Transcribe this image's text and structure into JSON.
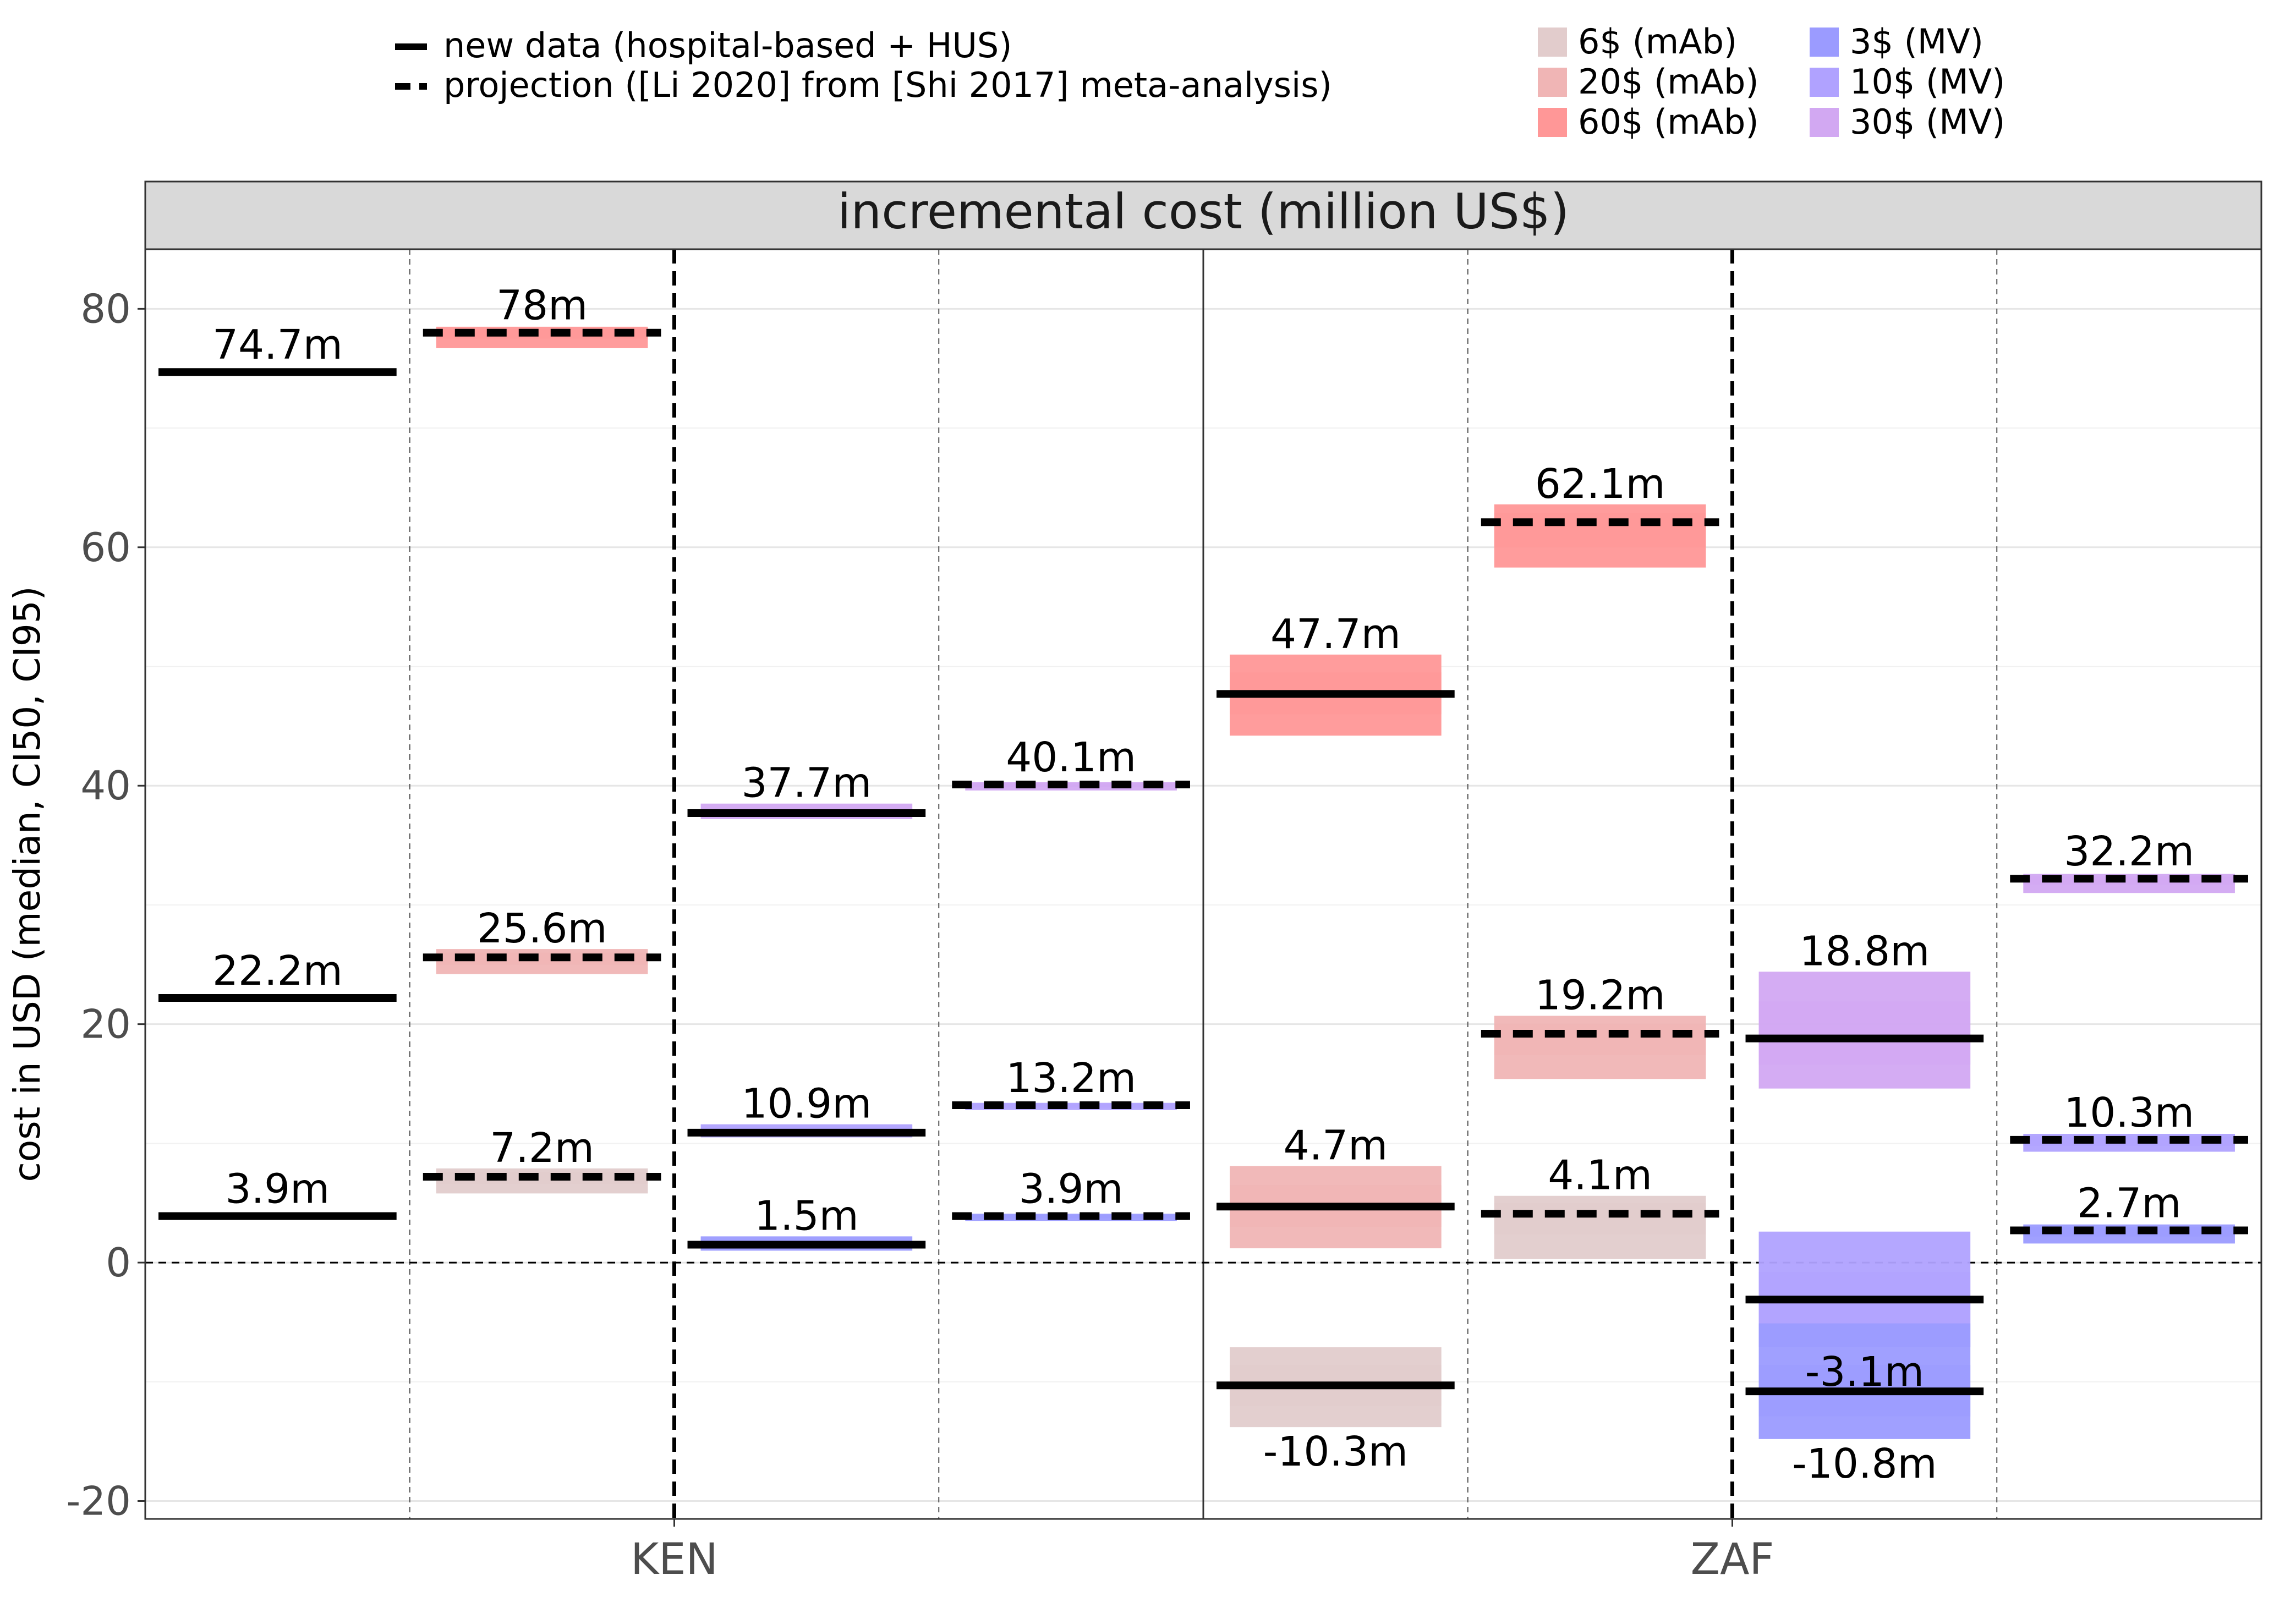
{
  "legend": {
    "linetypes": [
      {
        "key": "solid",
        "label": "new data (hospital-based + HUS)"
      },
      {
        "key": "dashed",
        "label": "projection ([Li 2020] from [Shi 2017] meta-analysis)"
      }
    ],
    "fills": [
      {
        "key": "mab6",
        "label": "6$ (mAb)",
        "color": "#e2cccc"
      },
      {
        "key": "mab20",
        "label": "20$ (mAb)",
        "color": "#f0b5b5"
      },
      {
        "key": "mab60",
        "label": "60$ (mAb)",
        "color": "#ff9797"
      },
      {
        "key": "mv3",
        "label": "3$ (MV)",
        "color": "#9b9bff"
      },
      {
        "key": "mv10",
        "label": "10$ (MV)",
        "color": "#b0a2ff"
      },
      {
        "key": "mv30",
        "label": "30$ (MV)",
        "color": "#d2a8f2"
      }
    ]
  },
  "chart_data": {
    "type": "crossbar",
    "facet_title": "incremental cost (million US$)",
    "ylabel": "cost in USD (median, CI50, CI95)",
    "xlabel": "",
    "ylim": [
      -21.5,
      85
    ],
    "yticks": [
      -20,
      0,
      20,
      40,
      60,
      80
    ],
    "categories": [
      "KEN",
      "ZAF"
    ],
    "columns": [
      {
        "country": "KEN",
        "intervention": "mAb",
        "linetype": "solid"
      },
      {
        "country": "KEN",
        "intervention": "mAb",
        "linetype": "dashed"
      },
      {
        "country": "KEN",
        "intervention": "MV",
        "linetype": "solid"
      },
      {
        "country": "KEN",
        "intervention": "MV",
        "linetype": "dashed"
      },
      {
        "country": "ZAF",
        "intervention": "mAb",
        "linetype": "solid"
      },
      {
        "country": "ZAF",
        "intervention": "mAb",
        "linetype": "dashed"
      },
      {
        "country": "ZAF",
        "intervention": "MV",
        "linetype": "solid"
      },
      {
        "country": "ZAF",
        "intervention": "MV",
        "linetype": "dashed"
      }
    ],
    "series": [
      {
        "column": 0,
        "price": "mab60",
        "median": 74.7,
        "ci50": [
          74.5,
          74.9
        ],
        "ci95": [
          74.4,
          75.0
        ],
        "label": "74.7m",
        "label_pos": "above"
      },
      {
        "column": 0,
        "price": "mab20",
        "median": 22.2,
        "ci50": [
          22.0,
          22.4
        ],
        "ci95": [
          21.9,
          22.5
        ],
        "label": "22.2m",
        "label_pos": "above"
      },
      {
        "column": 0,
        "price": "mab6",
        "median": 3.9,
        "ci50": [
          3.7,
          4.1
        ],
        "ci95": [
          3.6,
          4.2
        ],
        "label": "3.9m",
        "label_pos": "above"
      },
      {
        "column": 1,
        "price": "mab60",
        "median": 78,
        "ci50": [
          77.5,
          78.3
        ],
        "ci95": [
          76.7,
          78.5
        ],
        "label": "78m",
        "label_pos": "above"
      },
      {
        "column": 1,
        "price": "mab20",
        "median": 25.6,
        "ci50": [
          25.0,
          26.0
        ],
        "ci95": [
          24.2,
          26.3
        ],
        "label": "25.6m",
        "label_pos": "above"
      },
      {
        "column": 1,
        "price": "mab6",
        "median": 7.2,
        "ci50": [
          6.6,
          7.6
        ],
        "ci95": [
          5.8,
          7.9
        ],
        "label": "7.2m",
        "label_pos": "above"
      },
      {
        "column": 2,
        "price": "mv30",
        "median": 37.7,
        "ci50": [
          37.5,
          38.1
        ],
        "ci95": [
          37.2,
          38.5
        ],
        "label": "37.7m",
        "label_pos": "above"
      },
      {
        "column": 2,
        "price": "mv10",
        "median": 10.9,
        "ci50": [
          10.7,
          11.3
        ],
        "ci95": [
          10.5,
          11.6
        ],
        "label": "10.9m",
        "label_pos": "above"
      },
      {
        "column": 2,
        "price": "mv3",
        "median": 1.5,
        "ci50": [
          1.3,
          1.8
        ],
        "ci95": [
          1.0,
          2.2
        ],
        "label": "1.5m",
        "label_pos": "above"
      },
      {
        "column": 3,
        "price": "mv30",
        "median": 40.1,
        "ci50": [
          39.9,
          40.2
        ],
        "ci95": [
          39.6,
          40.3
        ],
        "label": "40.1m",
        "label_pos": "above"
      },
      {
        "column": 3,
        "price": "mv10",
        "median": 13.2,
        "ci50": [
          13.0,
          13.3
        ],
        "ci95": [
          12.8,
          13.4
        ],
        "label": "13.2m",
        "label_pos": "above"
      },
      {
        "column": 3,
        "price": "mv3",
        "median": 3.9,
        "ci50": [
          3.7,
          4.0
        ],
        "ci95": [
          3.5,
          4.1
        ],
        "label": "3.9m",
        "label_pos": "above"
      },
      {
        "column": 4,
        "price": "mab60",
        "median": 47.7,
        "ci50": [
          46.0,
          49.5
        ],
        "ci95": [
          44.2,
          51.0
        ],
        "label": "47.7m",
        "label_pos": "above"
      },
      {
        "column": 4,
        "price": "mab20",
        "median": 4.7,
        "ci50": [
          3.0,
          6.5
        ],
        "ci95": [
          1.2,
          8.1
        ],
        "label": "4.7m",
        "label_pos": "above"
      },
      {
        "column": 4,
        "price": "mab6",
        "median": -10.3,
        "ci50": [
          -12.0,
          -8.6
        ],
        "ci95": [
          -13.8,
          -7.1
        ],
        "label": "-10.3m",
        "label_pos": "below"
      },
      {
        "column": 5,
        "price": "mab60",
        "median": 62.1,
        "ci50": [
          60.0,
          62.9
        ],
        "ci95": [
          58.3,
          63.6
        ],
        "label": "62.1m",
        "label_pos": "above"
      },
      {
        "column": 5,
        "price": "mab20",
        "median": 19.2,
        "ci50": [
          17.4,
          20.0
        ],
        "ci95": [
          15.4,
          20.7
        ],
        "label": "19.2m",
        "label_pos": "above"
      },
      {
        "column": 5,
        "price": "mab6",
        "median": 4.1,
        "ci50": [
          2.4,
          5.0
        ],
        "ci95": [
          0.3,
          5.6
        ],
        "label": "4.1m",
        "label_pos": "above"
      },
      {
        "column": 6,
        "price": "mv30",
        "median": 18.8,
        "ci50": [
          16.6,
          21.9
        ],
        "ci95": [
          14.6,
          24.4
        ],
        "label": "18.8m",
        "label_pos": "above"
      },
      {
        "column": 6,
        "price": "mv10",
        "median": -3.1,
        "ci50": [
          -5.1,
          -0.8
        ],
        "ci95": [
          -7.1,
          2.6
        ],
        "label": "-3.1m",
        "label_pos": "below"
      },
      {
        "column": 6,
        "price": "mv3",
        "median": -10.8,
        "ci50": [
          -12.9,
          -8.6
        ],
        "ci95": [
          -14.8,
          -5.1
        ],
        "label": "-10.8m",
        "label_pos": "below"
      },
      {
        "column": 7,
        "price": "mv30",
        "median": 32.2,
        "ci50": [
          31.7,
          32.4
        ],
        "ci95": [
          31.0,
          32.6
        ],
        "label": "32.2m",
        "label_pos": "above"
      },
      {
        "column": 7,
        "price": "mv10",
        "median": 10.3,
        "ci50": [
          9.8,
          10.6
        ],
        "ci95": [
          9.3,
          10.8
        ],
        "label": "10.3m",
        "label_pos": "above"
      },
      {
        "column": 7,
        "price": "mv3",
        "median": 2.7,
        "ci50": [
          2.2,
          3.0
        ],
        "ci95": [
          1.6,
          3.2
        ],
        "label": "2.7m",
        "label_pos": "above"
      }
    ]
  }
}
